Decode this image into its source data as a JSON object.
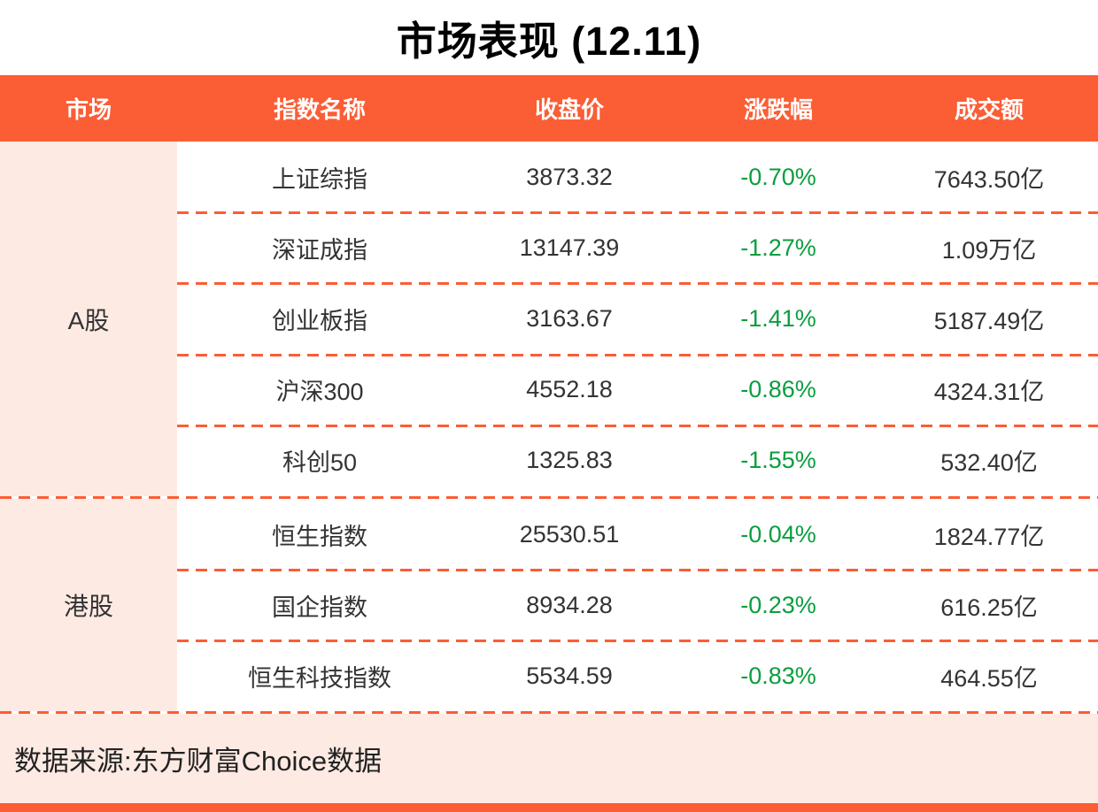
{
  "title": "市场表现 (12.11)",
  "table": {
    "headers": [
      "市场",
      "指数名称",
      "收盘价",
      "涨跌幅",
      "成交额"
    ],
    "groups": [
      {
        "market": "A股",
        "rows": [
          {
            "name": "上证综指",
            "close": "3873.32",
            "change": "-0.70%",
            "turnover": "7643.50亿"
          },
          {
            "name": "深证成指",
            "close": "13147.39",
            "change": "-1.27%",
            "turnover": "1.09万亿"
          },
          {
            "name": "创业板指",
            "close": "3163.67",
            "change": "-1.41%",
            "turnover": "5187.49亿"
          },
          {
            "name": "沪深300",
            "close": "4552.18",
            "change": "-0.86%",
            "turnover": "4324.31亿"
          },
          {
            "name": "科创50",
            "close": "1325.83",
            "change": "-1.55%",
            "turnover": "532.40亿"
          }
        ]
      },
      {
        "market": "港股",
        "rows": [
          {
            "name": "恒生指数",
            "close": "25530.51",
            "change": "-0.04%",
            "turnover": "1824.77亿"
          },
          {
            "name": "国企指数",
            "close": "8934.28",
            "change": "-0.23%",
            "turnover": "616.25亿"
          },
          {
            "name": "恒生科技指数",
            "close": "5534.59",
            "change": "-0.83%",
            "turnover": "464.55亿"
          }
        ]
      }
    ]
  },
  "footer": {
    "source": "数据来源:东方财富Choice数据"
  },
  "colors": {
    "accent_orange": "#fb5d35",
    "panel_pink": "#fdeae3",
    "down_green": "#0a9e3e",
    "body_text": "#333333"
  },
  "chart_data": {
    "type": "table",
    "title": "市场表现 (12.11)",
    "columns": [
      "市场",
      "指数名称",
      "收盘价",
      "涨跌幅",
      "成交额"
    ],
    "rows": [
      [
        "A股",
        "上证综指",
        3873.32,
        "-0.70%",
        "7643.50亿"
      ],
      [
        "A股",
        "深证成指",
        13147.39,
        "-1.27%",
        "1.09万亿"
      ],
      [
        "A股",
        "创业板指",
        3163.67,
        "-1.41%",
        "5187.49亿"
      ],
      [
        "A股",
        "沪深300",
        4552.18,
        "-0.86%",
        "4324.31亿"
      ],
      [
        "A股",
        "科创50",
        1325.83,
        "-1.55%",
        "532.40亿"
      ],
      [
        "港股",
        "恒生指数",
        25530.51,
        "-0.04%",
        "1824.77亿"
      ],
      [
        "港股",
        "国企指数",
        8934.28,
        "-0.23%",
        "616.25亿"
      ],
      [
        "港股",
        "恒生科技指数",
        5534.59,
        "-0.83%",
        "464.55亿"
      ]
    ],
    "source_note": "数据来源:东方财富Choice数据"
  }
}
